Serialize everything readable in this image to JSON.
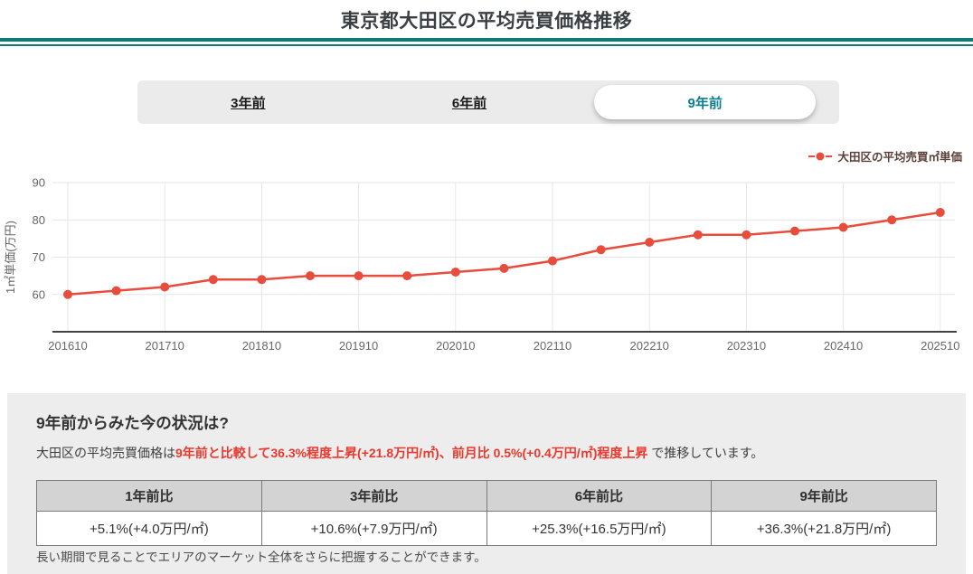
{
  "page": {
    "title": "東京都大田区の平均売買価格推移"
  },
  "colors": {
    "accent_teal": "#0f7b70",
    "tab_teal": "#0e7f8c",
    "chart_red": "#e74c3c",
    "text_red": "#e8392e",
    "legend_brown": "#5d4037",
    "panel_gray": "#ededed",
    "tabbar_gray": "#ebebeb",
    "table_header_gray": "#d3d3d3"
  },
  "tabs": [
    {
      "label": "3年前",
      "selected": false
    },
    {
      "label": "6年前",
      "selected": false
    },
    {
      "label": "9年前",
      "selected": true
    }
  ],
  "legend": {
    "label": "大田区の平均売買㎡単価",
    "color": "#e74c3c"
  },
  "chart_data": {
    "type": "line",
    "title": "",
    "series_name": "大田区の平均売買㎡単価",
    "x": [
      "201610",
      "201704",
      "201710",
      "201804",
      "201810",
      "201904",
      "201910",
      "202004",
      "202010",
      "202104",
      "202110",
      "202204",
      "202210",
      "202304",
      "202310",
      "202404",
      "202410",
      "202504",
      "202510"
    ],
    "values": [
      60,
      61,
      62,
      64,
      64,
      65,
      65,
      65,
      66,
      67,
      69,
      72,
      74,
      76,
      76,
      77,
      78,
      80,
      82
    ],
    "xtick_labels": [
      "201610",
      "201710",
      "201810",
      "201910",
      "202010",
      "202110",
      "202210",
      "202310",
      "202410",
      "202510"
    ],
    "ylabel": "1㎡単価(万円)",
    "xlabel": "",
    "ylim": [
      50,
      90
    ],
    "yticks": [
      60,
      70,
      80,
      90
    ],
    "grid": true,
    "line_color": "#e74c3c",
    "marker": "circle",
    "legend_position": "top-right"
  },
  "summary": {
    "heading": "9年前からみた今の状況は?",
    "lead_plain": "大田区の平均売買価格は",
    "lead_highlight": "9年前と比較して36.3%程度上昇(+21.8万円/㎡)、前月比 0.5%(+0.4万円/㎡)程度上昇",
    "lead_tail": " で推移しています。",
    "table": {
      "headers": [
        "1年前比",
        "3年前比",
        "6年前比",
        "9年前比"
      ],
      "values": [
        "+5.1%(+4.0万円/㎡)",
        "+10.6%(+7.9万円/㎡)",
        "+25.3%(+16.5万円/㎡)",
        "+36.3%(+21.8万円/㎡)"
      ]
    },
    "note": "長い期間で見ることでエリアのマーケット全体をさらに把握することができます。"
  }
}
